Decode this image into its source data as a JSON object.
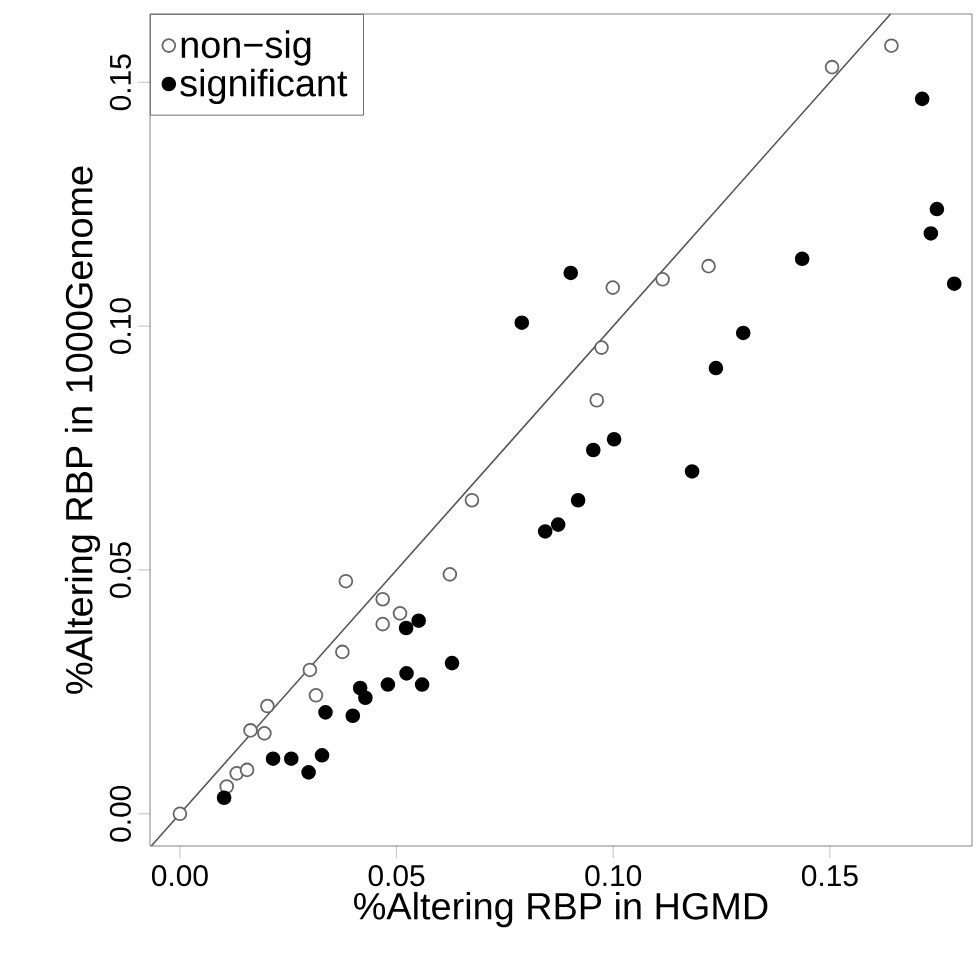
{
  "chart_data": {
    "type": "scatter",
    "xlabel": "%Altering RBP in HGMD",
    "ylabel": "%Altering RBP in 1000Genome",
    "xlim": [
      -0.0069,
      0.1828
    ],
    "ylim": [
      -0.0066,
      0.164
    ],
    "xticks": [
      {
        "value": 0,
        "label": "0.00"
      },
      {
        "value": 0.05,
        "label": "0.05"
      },
      {
        "value": 0.1,
        "label": "0.10"
      },
      {
        "value": 0.15,
        "label": "0.15"
      }
    ],
    "yticks": [
      {
        "value": 0,
        "label": "0.00"
      },
      {
        "value": 0.05,
        "label": "0.05"
      },
      {
        "value": 0.1,
        "label": "0.10"
      },
      {
        "value": 0.15,
        "label": "0.15"
      }
    ],
    "legend": "top left",
    "series": [
      {
        "name": "non−sig",
        "color": "#666666",
        "marker": "open circle",
        "x": [
          0,
          0.0108,
          0.0131,
          0.0155,
          0.0163,
          0.0195,
          0.0202,
          0.03,
          0.0314,
          0.0375,
          0.0383,
          0.0468,
          0.0468,
          0.0508,
          0.0623,
          0.0674,
          0.0962,
          0.0973,
          0.0999,
          0.1114,
          0.122,
          0.1505,
          0.1642
        ],
        "values": [
          0,
          0.0056,
          0.0083,
          0.009,
          0.0171,
          0.0165,
          0.0221,
          0.0295,
          0.0243,
          0.0332,
          0.0477,
          0.044,
          0.0389,
          0.0411,
          0.0491,
          0.0643,
          0.0848,
          0.0956,
          0.1079,
          0.1096,
          0.1123,
          0.1531,
          0.1575
        ]
      },
      {
        "name": "significant",
        "color": "#000000",
        "marker": "circle",
        "x": [
          0.0102,
          0.0215,
          0.0257,
          0.0297,
          0.0328,
          0.0336,
          0.0399,
          0.0416,
          0.0428,
          0.048,
          0.0522,
          0.0551,
          0.0523,
          0.0559,
          0.0628,
          0.0843,
          0.0873,
          0.0919,
          0.0954,
          0.1002,
          0.1182,
          0.0789,
          0.0902,
          0.1237,
          0.13,
          0.1436,
          0.1713,
          0.1747,
          0.1733,
          0.1787
        ],
        "values": [
          0.0033,
          0.0113,
          0.0113,
          0.0085,
          0.012,
          0.0208,
          0.0201,
          0.0258,
          0.0238,
          0.0265,
          0.0381,
          0.0396,
          0.0288,
          0.0265,
          0.0309,
          0.0579,
          0.0593,
          0.0643,
          0.0746,
          0.0768,
          0.0702,
          0.1007,
          0.1109,
          0.0914,
          0.0986,
          0.1138,
          0.1466,
          0.124,
          0.119,
          0.1087
        ]
      },
      {
        "type": "line",
        "color": "#555555",
        "marker": "none",
        "x": [
          -0.0066,
          0.164
        ],
        "values": [
          -0.0066,
          0.164
        ]
      }
    ]
  }
}
